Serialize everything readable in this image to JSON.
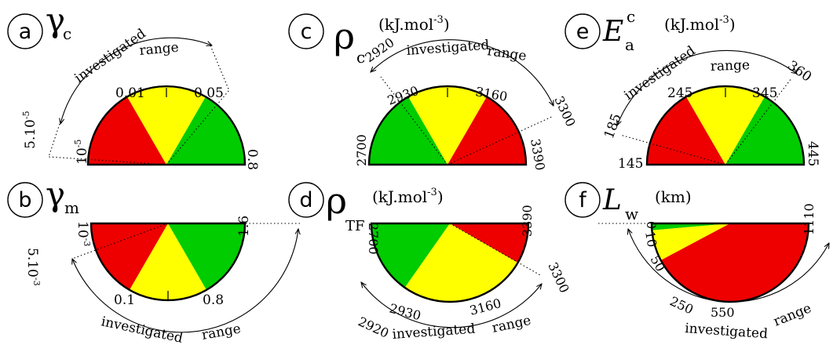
{
  "colors": {
    "red": "#ee0000",
    "yellow": "#ffff00",
    "green": "#00cc00"
  },
  "panels": {
    "a": {
      "letter": "a",
      "sym": "γ",
      "sub": "c",
      "unit": "",
      "ticks": [
        "10",
        "0.01",
        "0.05",
        "0.8"
      ],
      "tick_sup": "-5",
      "range_low": "5.10",
      "range_low_sup": "-5",
      "range_high": "",
      "range_caption_1": "investigated",
      "range_caption_2": "range"
    },
    "b": {
      "letter": "b",
      "sym": "γ",
      "sub": "m",
      "unit": "",
      "ticks": [
        "10",
        "0.1",
        "0.8",
        "1.6"
      ],
      "tick_sup": "-3",
      "range_low": "5.10",
      "range_low_sup": "-3",
      "range_high": "",
      "range_caption_1": "investigated",
      "range_caption_2": "range"
    },
    "c": {
      "letter": "c",
      "sym": "ρ",
      "sub": "c",
      "unit": "(kJ.mol",
      "unit_sup": "-3",
      "unit_close": ")",
      "ticks": [
        "2700",
        "2930",
        "3160",
        "3390"
      ],
      "range_low": "2920",
      "range_high": "3300",
      "range_caption_1": "investigated",
      "range_caption_2": "range"
    },
    "d": {
      "letter": "d",
      "sym": "ρ",
      "sub": "TF",
      "unit": "(kJ.mol",
      "unit_sup": "-3",
      "unit_close": ")",
      "ticks": [
        "2700",
        "2930",
        "3160",
        "3390"
      ],
      "range_low": "2920",
      "range_high": "3300",
      "range_caption_1": "investigated",
      "range_caption_2": "range"
    },
    "e": {
      "letter": "e",
      "sym": "E",
      "sub": "a",
      "sup": "c",
      "unit": "(kJ.mol",
      "unit_sup": "-3",
      "unit_close": ")",
      "ticks": [
        "145",
        "245",
        "345",
        "445"
      ],
      "range_low": "185",
      "range_high": "360",
      "range_caption_1": "investigated",
      "range_caption_2": "range"
    },
    "f": {
      "letter": "f",
      "sym": "L",
      "sub": "w",
      "unit": "(km)",
      "ticks": [
        "0",
        "10",
        "50",
        "250",
        "550",
        "1110"
      ],
      "range_caption_1": "investigated",
      "range_caption_2": "range"
    }
  }
}
